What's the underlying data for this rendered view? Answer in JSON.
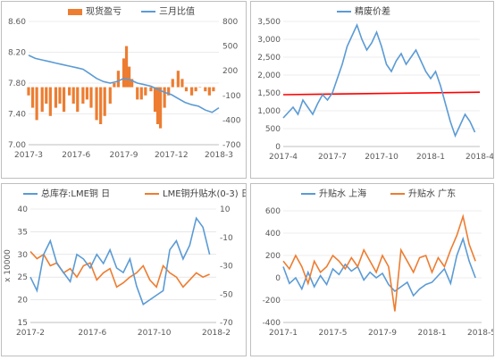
{
  "colors": {
    "orange": "#ED7D31",
    "blue": "#5B9BD5",
    "red": "#FF0000",
    "grid": "#d9d9d9",
    "axis": "#bfbfbf",
    "text": "#595959"
  },
  "chart_data": [
    {
      "id": "spot-premium",
      "type": "bar+line",
      "series": [
        {
          "name": "现货盈亏",
          "type": "bar",
          "axis": "right",
          "color": "#ED7D31"
        },
        {
          "name": "三月比值",
          "type": "line",
          "axis": "left",
          "color": "#5B9BD5"
        }
      ],
      "x_ticks": [
        "2017-3",
        "2017-6",
        "2017-9",
        "2017-12",
        "2018-3"
      ],
      "x_range": [
        0,
        14
      ],
      "y_left": {
        "ticks": [
          "7.00",
          "7.40",
          "7.80",
          "8.20",
          "8.60"
        ],
        "range": [
          7.0,
          8.6
        ]
      },
      "y_right": {
        "ticks": [
          "-700",
          "-400",
          "-100",
          "200",
          "500",
          "800"
        ],
        "range": [
          -700,
          800
        ]
      },
      "bar_values": [
        [
          0,
          -100
        ],
        [
          0.3,
          -250
        ],
        [
          0.6,
          -400
        ],
        [
          1,
          -300
        ],
        [
          1.3,
          -200
        ],
        [
          1.6,
          -350
        ],
        [
          2,
          -250
        ],
        [
          2.3,
          -200
        ],
        [
          2.6,
          -300
        ],
        [
          3,
          -100
        ],
        [
          3.3,
          -200
        ],
        [
          3.6,
          -300
        ],
        [
          4,
          -200
        ],
        [
          4.3,
          -150
        ],
        [
          4.6,
          -250
        ],
        [
          5,
          -400
        ],
        [
          5.3,
          -450
        ],
        [
          5.6,
          -350
        ],
        [
          6,
          -200
        ],
        [
          6.3,
          50
        ],
        [
          6.6,
          200
        ],
        [
          7,
          350
        ],
        [
          7.2,
          500
        ],
        [
          7.4,
          250
        ],
        [
          7.6,
          100
        ],
        [
          8,
          -150
        ],
        [
          8.3,
          -150
        ],
        [
          8.6,
          -100
        ],
        [
          9,
          -50
        ],
        [
          9.3,
          -300
        ],
        [
          9.5,
          -450
        ],
        [
          9.7,
          -500
        ],
        [
          10,
          -250
        ],
        [
          10.3,
          -100
        ],
        [
          10.6,
          100
        ],
        [
          11,
          200
        ],
        [
          11.3,
          100
        ],
        [
          11.6,
          -50
        ],
        [
          12,
          -100
        ],
        [
          12.3,
          -50
        ],
        [
          12.6,
          0
        ],
        [
          13,
          -50
        ],
        [
          13.3,
          -100
        ],
        [
          13.6,
          -50
        ]
      ],
      "line_values": [
        [
          0,
          8.16
        ],
        [
          0.5,
          8.12
        ],
        [
          1,
          8.1
        ],
        [
          1.5,
          8.08
        ],
        [
          2,
          8.06
        ],
        [
          2.5,
          8.04
        ],
        [
          3,
          8.02
        ],
        [
          3.5,
          8.0
        ],
        [
          4,
          7.98
        ],
        [
          4.5,
          7.92
        ],
        [
          5,
          7.86
        ],
        [
          5.5,
          7.82
        ],
        [
          6,
          7.8
        ],
        [
          6.5,
          7.82
        ],
        [
          7,
          7.86
        ],
        [
          7.5,
          7.84
        ],
        [
          8,
          7.8
        ],
        [
          8.5,
          7.78
        ],
        [
          9,
          7.76
        ],
        [
          9.5,
          7.72
        ],
        [
          10,
          7.68
        ],
        [
          10.5,
          7.65
        ],
        [
          11,
          7.6
        ],
        [
          11.5,
          7.55
        ],
        [
          12,
          7.52
        ],
        [
          12.5,
          7.5
        ],
        [
          13,
          7.45
        ],
        [
          13.5,
          7.42
        ],
        [
          14,
          7.48
        ]
      ]
    },
    {
      "id": "refined-scrap-spread",
      "type": "line",
      "series": [
        {
          "name": "精废价差",
          "color": "#5B9BD5"
        }
      ],
      "x_ticks": [
        "2017-4",
        "2017-7",
        "2017-10",
        "2018-1",
        "2018-4"
      ],
      "x_range": [
        0,
        12
      ],
      "y": {
        "ticks": [
          "0",
          "500",
          "1,000",
          "1,500",
          "2,000",
          "2,500",
          "3,000",
          "3,500"
        ],
        "range": [
          0,
          3500
        ]
      },
      "reference_line": {
        "color": "#FF0000",
        "from": 1450,
        "to": 1520
      },
      "values": [
        [
          0,
          800
        ],
        [
          0.3,
          950
        ],
        [
          0.6,
          1100
        ],
        [
          0.9,
          900
        ],
        [
          1.2,
          1300
        ],
        [
          1.5,
          1100
        ],
        [
          1.8,
          900
        ],
        [
          2.1,
          1200
        ],
        [
          2.4,
          1450
        ],
        [
          2.7,
          1300
        ],
        [
          3,
          1500
        ],
        [
          3.3,
          1900
        ],
        [
          3.6,
          2300
        ],
        [
          3.9,
          2800
        ],
        [
          4.2,
          3100
        ],
        [
          4.5,
          3400
        ],
        [
          4.8,
          3000
        ],
        [
          5.1,
          2700
        ],
        [
          5.4,
          2900
        ],
        [
          5.7,
          3200
        ],
        [
          6,
          2800
        ],
        [
          6.3,
          2300
        ],
        [
          6.6,
          2100
        ],
        [
          6.9,
          2400
        ],
        [
          7.2,
          2600
        ],
        [
          7.5,
          2300
        ],
        [
          7.8,
          2500
        ],
        [
          8.1,
          2700
        ],
        [
          8.4,
          2400
        ],
        [
          8.7,
          2100
        ],
        [
          9,
          1900
        ],
        [
          9.3,
          2100
        ],
        [
          9.6,
          1700
        ],
        [
          9.9,
          1200
        ],
        [
          10.2,
          700
        ],
        [
          10.5,
          300
        ],
        [
          10.8,
          600
        ],
        [
          11.1,
          900
        ],
        [
          11.4,
          700
        ],
        [
          11.7,
          400
        ]
      ]
    },
    {
      "id": "lme-inventory-premium",
      "type": "line",
      "series": [
        {
          "name": "总库存:LME铜 日",
          "axis": "left",
          "color": "#5B9BD5"
        },
        {
          "name": "LME铜升贴水(0-3) 日",
          "axis": "right",
          "color": "#ED7D31"
        }
      ],
      "x_ticks": [
        "2017-2",
        "2017-6",
        "2017-10",
        "2018-2"
      ],
      "x_range": [
        0,
        14
      ],
      "y_left": {
        "label": "x 10000",
        "ticks": [
          "15",
          "20",
          "25",
          "30",
          "35",
          "40"
        ],
        "range": [
          15,
          40
        ]
      },
      "y_right": {
        "ticks": [
          "-70",
          "-50",
          "-30",
          "-10",
          "10"
        ],
        "range": [
          -70,
          10
        ]
      },
      "series_values": [
        [
          [
            0,
            25
          ],
          [
            0.5,
            22
          ],
          [
            1,
            30
          ],
          [
            1.5,
            33
          ],
          [
            2,
            28
          ],
          [
            2.5,
            26
          ],
          [
            3,
            24
          ],
          [
            3.5,
            30
          ],
          [
            4,
            29
          ],
          [
            4.5,
            27
          ],
          [
            5,
            30
          ],
          [
            5.5,
            28
          ],
          [
            6,
            31
          ],
          [
            6.5,
            27
          ],
          [
            7,
            26
          ],
          [
            7.5,
            29
          ],
          [
            8,
            23
          ],
          [
            8.5,
            19
          ],
          [
            9,
            20
          ],
          [
            9.5,
            21
          ],
          [
            10,
            22
          ],
          [
            10.5,
            31
          ],
          [
            11,
            33
          ],
          [
            11.5,
            29
          ],
          [
            12,
            32
          ],
          [
            12.5,
            38
          ],
          [
            13,
            36
          ],
          [
            13.5,
            30
          ]
        ],
        [
          [
            0,
            -20
          ],
          [
            0.5,
            -25
          ],
          [
            1,
            -22
          ],
          [
            1.5,
            -30
          ],
          [
            2,
            -28
          ],
          [
            2.5,
            -35
          ],
          [
            3,
            -32
          ],
          [
            3.5,
            -38
          ],
          [
            4,
            -30
          ],
          [
            4.5,
            -28
          ],
          [
            5,
            -40
          ],
          [
            5.5,
            -35
          ],
          [
            6,
            -32
          ],
          [
            6.5,
            -45
          ],
          [
            7,
            -42
          ],
          [
            7.5,
            -38
          ],
          [
            8,
            -35
          ],
          [
            8.5,
            -30
          ],
          [
            9,
            -40
          ],
          [
            9.5,
            -45
          ],
          [
            10,
            -30
          ],
          [
            10.5,
            -35
          ],
          [
            11,
            -38
          ],
          [
            11.5,
            -45
          ],
          [
            12,
            -40
          ],
          [
            12.5,
            -35
          ],
          [
            13,
            -38
          ],
          [
            13.5,
            -36
          ]
        ]
      ]
    },
    {
      "id": "premium-shanghai-guangdong",
      "type": "line",
      "series": [
        {
          "name": "升贴水 上海",
          "color": "#5B9BD5"
        },
        {
          "name": "升贴水 广东",
          "color": "#ED7D31"
        }
      ],
      "x_ticks": [
        "2017-1",
        "2017-5",
        "2017-9",
        "2018-1",
        "2018-5"
      ],
      "x_range": [
        0,
        16
      ],
      "y": {
        "ticks": [
          "-400",
          "-200",
          "0",
          "200",
          "400",
          "600"
        ],
        "range": [
          -400,
          600
        ]
      },
      "series_values": [
        [
          [
            0,
            100
          ],
          [
            0.5,
            -50
          ],
          [
            1,
            0
          ],
          [
            1.5,
            -100
          ],
          [
            2,
            50
          ],
          [
            2.5,
            -80
          ],
          [
            3,
            20
          ],
          [
            3.5,
            -60
          ],
          [
            4,
            80
          ],
          [
            4.5,
            30
          ],
          [
            5,
            120
          ],
          [
            5.5,
            60
          ],
          [
            6,
            100
          ],
          [
            6.5,
            -20
          ],
          [
            7,
            50
          ],
          [
            7.5,
            0
          ],
          [
            8,
            40
          ],
          [
            8.5,
            -60
          ],
          [
            9,
            -120
          ],
          [
            9.5,
            -80
          ],
          [
            10,
            -40
          ],
          [
            10.5,
            -160
          ],
          [
            11,
            -100
          ],
          [
            11.5,
            -60
          ],
          [
            12,
            -40
          ],
          [
            12.5,
            20
          ],
          [
            13,
            80
          ],
          [
            13.5,
            -50
          ],
          [
            14,
            200
          ],
          [
            14.5,
            350
          ],
          [
            15,
            150
          ],
          [
            15.5,
            0
          ]
        ],
        [
          [
            0,
            150
          ],
          [
            0.5,
            80
          ],
          [
            1,
            200
          ],
          [
            1.5,
            100
          ],
          [
            2,
            -50
          ],
          [
            2.5,
            150
          ],
          [
            3,
            50
          ],
          [
            3.5,
            100
          ],
          [
            4,
            200
          ],
          [
            4.5,
            150
          ],
          [
            5,
            80
          ],
          [
            5.5,
            180
          ],
          [
            6,
            100
          ],
          [
            6.5,
            250
          ],
          [
            7,
            150
          ],
          [
            7.5,
            50
          ],
          [
            8,
            200
          ],
          [
            8.5,
            100
          ],
          [
            9,
            -300
          ],
          [
            9.5,
            250
          ],
          [
            10,
            150
          ],
          [
            10.5,
            50
          ],
          [
            11,
            180
          ],
          [
            11.5,
            200
          ],
          [
            12,
            50
          ],
          [
            12.5,
            180
          ],
          [
            13,
            100
          ],
          [
            13.5,
            250
          ],
          [
            14,
            380
          ],
          [
            14.5,
            550
          ],
          [
            15,
            300
          ],
          [
            15.5,
            150
          ]
        ]
      ]
    }
  ]
}
